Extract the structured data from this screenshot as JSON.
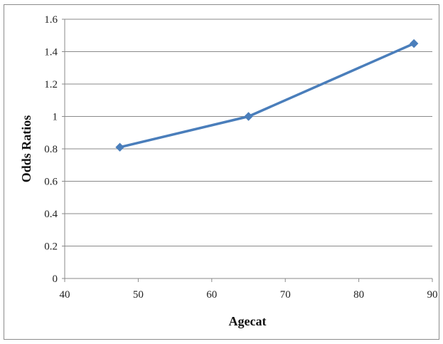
{
  "chart_data": {
    "type": "line",
    "title": "",
    "xlabel": "Agecat",
    "ylabel": "Odds Ratios",
    "xlim": [
      40,
      90
    ],
    "ylim": [
      0,
      1.6
    ],
    "x_ticks": [
      "40",
      "50",
      "60",
      "70",
      "80",
      "90"
    ],
    "y_ticks": [
      "0",
      "0.2",
      "0.4",
      "0.6",
      "0.8",
      "1",
      "1.2",
      "1.4",
      "1.6"
    ],
    "grid": true,
    "legend": "none",
    "series": [
      {
        "color": "#4a7ebb",
        "marker": "diamond",
        "x": [
          47.5,
          65,
          87.5
        ],
        "y": [
          0.81,
          1.0,
          1.45
        ]
      }
    ]
  }
}
